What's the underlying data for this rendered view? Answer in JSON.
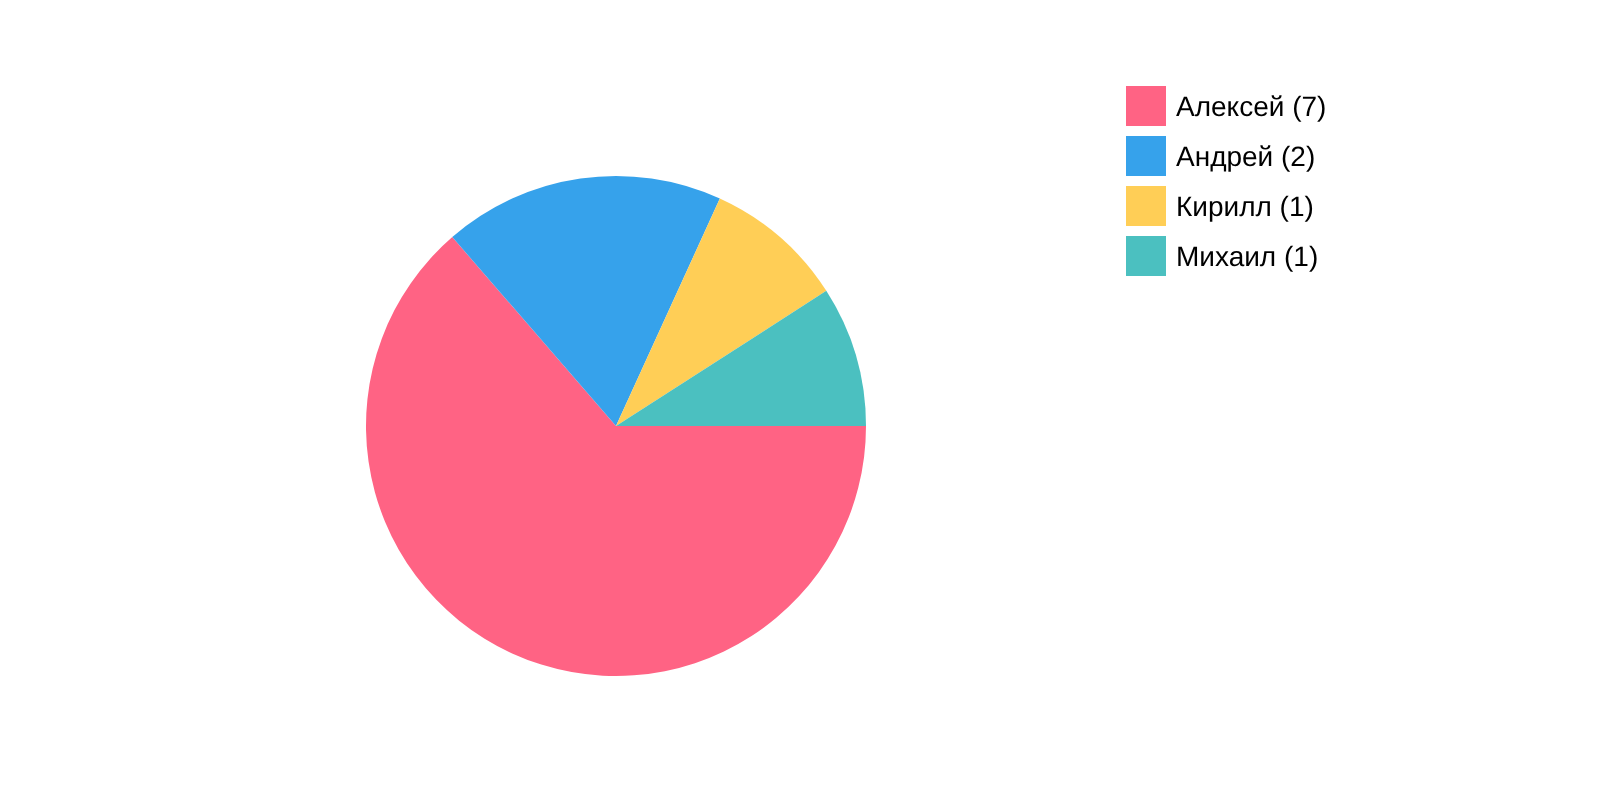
{
  "chart_data": {
    "type": "pie",
    "categories": [
      "Алексей (7)",
      "Андрей (2)",
      "Кирилл (1)",
      "Михаил (1)"
    ],
    "values": [
      7,
      2,
      1,
      1
    ],
    "colors": [
      "#ff6384",
      "#36a2eb",
      "#ffce56",
      "#4bc0c0"
    ],
    "legend": "top right"
  }
}
